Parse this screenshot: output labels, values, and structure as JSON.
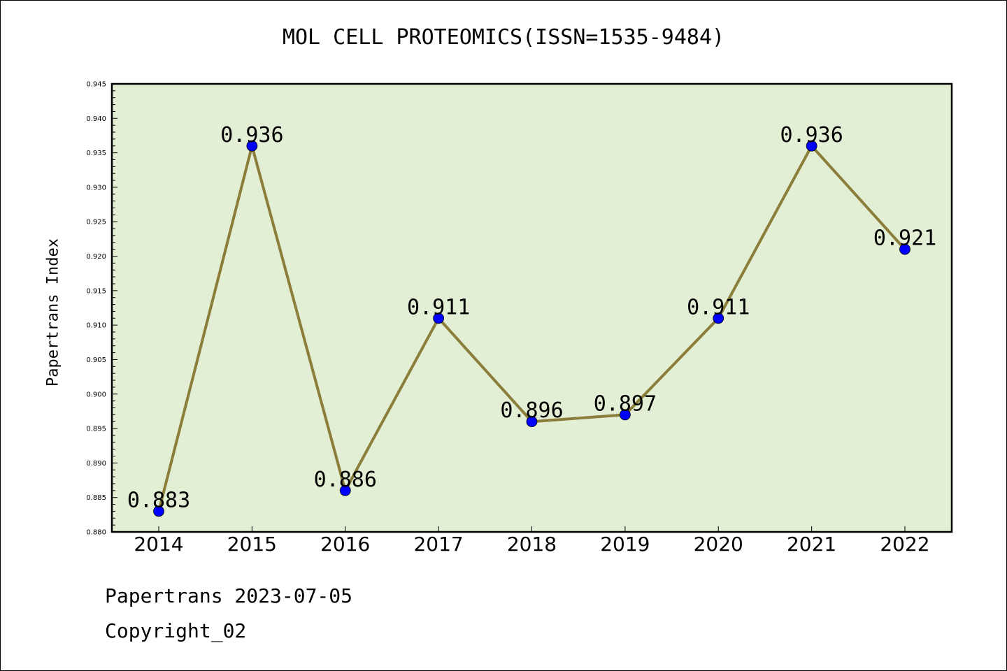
{
  "chart_data": {
    "type": "line",
    "title": "MOL CELL PROTEOMICS(ISSN=1535-9484)",
    "xlabel": "",
    "ylabel": "Papertrans Index",
    "categories": [
      "2014",
      "2015",
      "2016",
      "2017",
      "2018",
      "2019",
      "2020",
      "2021",
      "2022"
    ],
    "values": [
      0.883,
      0.936,
      0.886,
      0.911,
      0.896,
      0.897,
      0.911,
      0.936,
      0.921
    ],
    "data_labels": [
      "0.883",
      "0.936",
      "0.886",
      "0.911",
      "0.896",
      "0.897",
      "0.911",
      "0.936",
      "0.921"
    ],
    "ylim": [
      0.88,
      0.945
    ],
    "yticks": [
      "0.880",
      "0.885",
      "0.890",
      "0.895",
      "0.900",
      "0.905",
      "0.910",
      "0.915",
      "0.920",
      "0.925",
      "0.930",
      "0.935",
      "0.940",
      "0.945"
    ],
    "grid": false,
    "colors": {
      "plot_background": "#e2efd5",
      "line": "#8b7d3a",
      "marker": "#0000ff"
    }
  },
  "footer": {
    "line1": "Papertrans 2023-07-05",
    "line2": "Copyright_02"
  }
}
